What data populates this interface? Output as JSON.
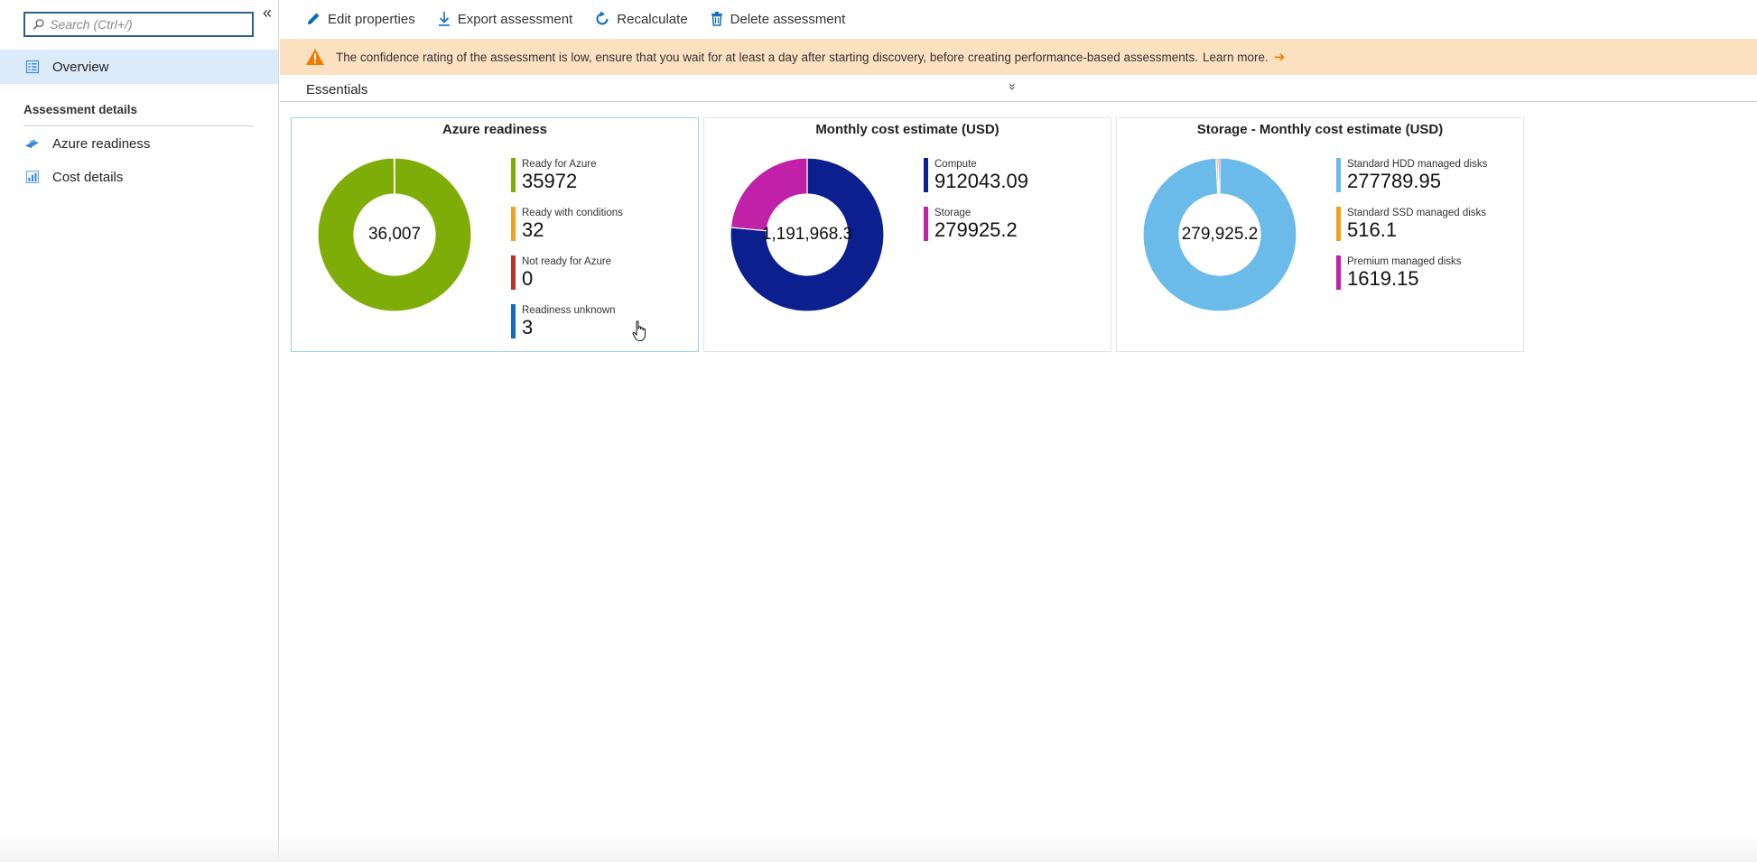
{
  "sidebar": {
    "search_placeholder": "Search (Ctrl+/)",
    "collapse_glyph": "«",
    "overview_label": "Overview",
    "section_header": "Assessment details",
    "items": [
      {
        "label": "Azure readiness",
        "icon": "azure-readiness-icon"
      },
      {
        "label": "Cost details",
        "icon": "cost-details-icon"
      }
    ]
  },
  "toolbar": {
    "edit_label": "Edit properties",
    "export_label": "Export assessment",
    "recalculate_label": "Recalculate",
    "delete_label": "Delete assessment"
  },
  "banner": {
    "text": "The confidence rating of the assessment is low, ensure that you wait for at least a day after starting discovery, before creating performance-based assessments.",
    "link": "Learn more.",
    "arrow": "➔"
  },
  "essentials": {
    "label": "Essentials",
    "chevron": "»"
  },
  "colors": {
    "ready": "#7fad08",
    "conditions": "#f29e1e",
    "not_ready": "#c0302a",
    "unknown": "#0f6cbd",
    "compute": "#0b1f8f",
    "storage": "#c021a8",
    "hdd": "#6bbbea",
    "ssd": "#f29e1e",
    "premium": "#c021a8"
  },
  "chart_data": [
    {
      "type": "pie",
      "title": "Azure readiness",
      "center_label": "36,007",
      "categories": [
        "Ready for Azure",
        "Ready with conditions",
        "Not ready for Azure",
        "Readiness unknown"
      ],
      "values": [
        35972,
        32,
        0,
        3
      ],
      "value_labels": [
        "35972",
        "32",
        "0",
        "3"
      ],
      "colors": [
        "#7fad08",
        "#f29e1e",
        "#c0302a",
        "#0f6cbd"
      ]
    },
    {
      "type": "pie",
      "title": "Monthly cost estimate (USD)",
      "center_label": "1,191,968.3",
      "categories": [
        "Compute",
        "Storage"
      ],
      "values": [
        912043.09,
        279925.2
      ],
      "value_labels": [
        "912043.09",
        "279925.2"
      ],
      "colors": [
        "#0b1f8f",
        "#c021a8"
      ]
    },
    {
      "type": "pie",
      "title": "Storage - Monthly cost estimate (USD)",
      "center_label": "279,925.2",
      "categories": [
        "Standard HDD managed disks",
        "Standard SSD managed disks",
        "Premium managed disks"
      ],
      "values": [
        277789.95,
        516.1,
        1619.15
      ],
      "value_labels": [
        "277789.95",
        "516.1",
        "1619.15"
      ],
      "colors": [
        "#6bbbea",
        "#f29e1e",
        "#c021a8"
      ]
    }
  ]
}
